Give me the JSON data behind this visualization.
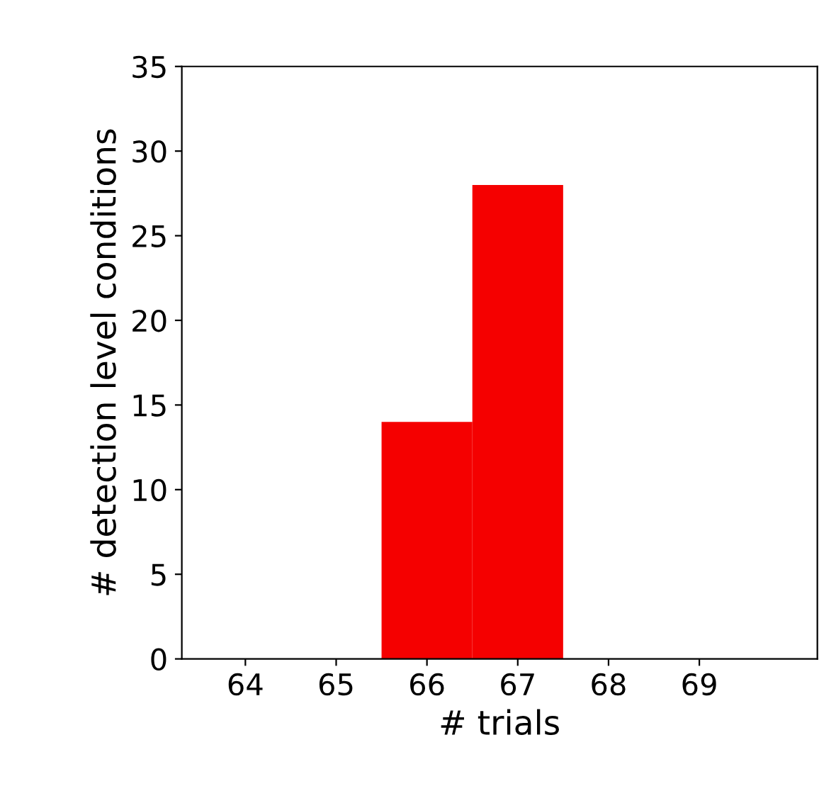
{
  "chart_data": {
    "type": "histogram",
    "xlabel": "# trials",
    "ylabel": "# detection level conditions",
    "bins": [
      65.5,
      66.5,
      67.5
    ],
    "values": [
      14,
      28
    ],
    "color": "#f50000",
    "xlim": [
      63.3,
      70.3
    ],
    "xticks": [
      64,
      65,
      66,
      67,
      68,
      69
    ],
    "ylim": [
      0,
      35
    ],
    "yticks": [
      0,
      5,
      10,
      15,
      20,
      25,
      30,
      35
    ],
    "grid": false
  }
}
